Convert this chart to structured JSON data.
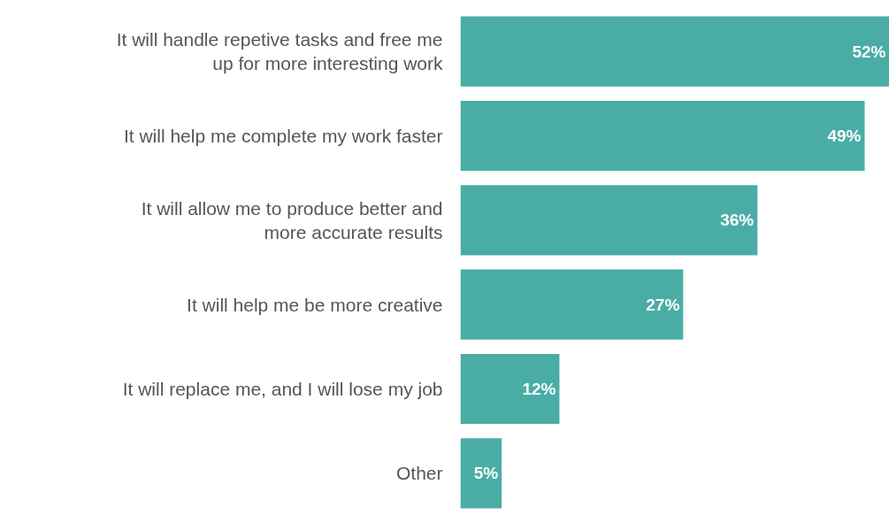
{
  "chart_data": {
    "type": "bar",
    "orientation": "horizontal",
    "categories": [
      "It will handle repetive tasks and free me up for more interesting work",
      "It will help me complete my work faster",
      "It will allow me to produce better and more accurate results",
      "It will help me be more creative",
      "It will replace me, and I will lose my job",
      "Other"
    ],
    "values": [
      52,
      49,
      36,
      27,
      12,
      5
    ],
    "value_labels": [
      "52%",
      "49%",
      "36%",
      "27%",
      "12%",
      "5%"
    ],
    "color": "#4aada5"
  }
}
